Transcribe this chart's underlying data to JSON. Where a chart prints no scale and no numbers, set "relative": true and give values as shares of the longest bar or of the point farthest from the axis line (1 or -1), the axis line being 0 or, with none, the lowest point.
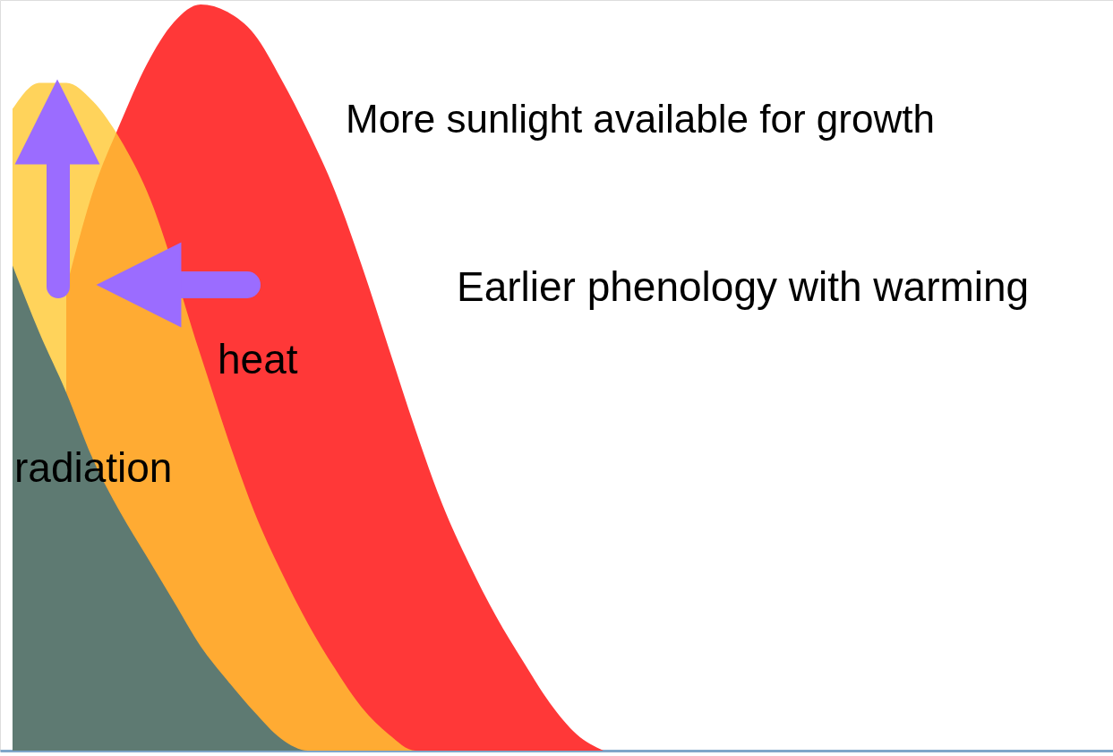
{
  "chart_data": {
    "type": "area",
    "relative": true,
    "categories": [
      null,
      null,
      null,
      null,
      null,
      null,
      null,
      null,
      null,
      null,
      null,
      null,
      null,
      null,
      null,
      null,
      null,
      null,
      null,
      null,
      null,
      null,
      null
    ],
    "series": [
      {
        "color": "#ff3838",
        "values": [
          null,
          null,
          0.62,
          0.75,
          0.84,
          0.92,
          0.976,
          1,
          0.99,
          0.96,
          0.9,
          0.83,
          0.75,
          0.65,
          0.54,
          0.43,
          0.33,
          0.25,
          0.18,
          0.12,
          0.064,
          0.022,
          0
        ]
      },
      {
        "color": "#ffc832",
        "values": [
          0.86,
          0.895,
          0.895,
          0.87,
          0.82,
          0.75,
          null,
          0.53,
          0.42,
          0.32,
          0.24,
          0.17,
          0.11,
          0.058,
          0.022,
          0,
          0,
          0,
          0,
          0,
          0,
          0,
          0
        ]
      },
      {
        "color": "#5e7a72",
        "values": [
          0.65,
          0.56,
          0.48,
          0.39,
          0.32,
          0.26,
          0.2,
          0.14,
          0.094,
          0.052,
          0.016,
          0,
          0,
          0,
          0,
          0,
          0,
          0,
          0,
          0,
          0,
          0,
          0
        ]
      }
    ],
    "annotations": [
      "More sunlight available for growth",
      "Earlier phenology with warming",
      "heat",
      "radiation"
    ],
    "grid": false
  }
}
